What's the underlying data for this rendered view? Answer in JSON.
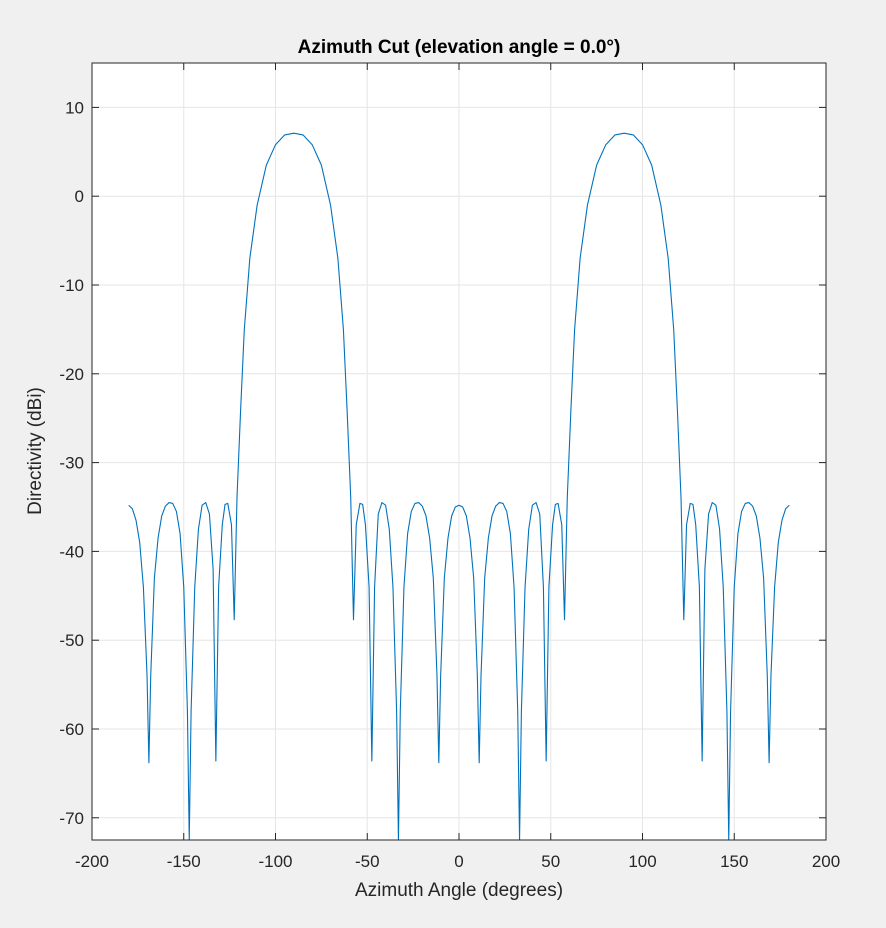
{
  "chart_data": {
    "type": "line",
    "title": "Azimuth Cut (elevation angle = 0.0°)",
    "xlabel": "Azimuth Angle (degrees)",
    "ylabel": "Directivity (dBi)",
    "xlim": [
      -200,
      200
    ],
    "ylim": [
      -72.5,
      15
    ],
    "xticks": [
      -200,
      -150,
      -100,
      -50,
      0,
      50,
      100,
      150,
      200
    ],
    "yticks": [
      -70,
      -60,
      -50,
      -40,
      -30,
      -20,
      -10,
      0,
      10
    ],
    "grid": true,
    "line_color": "#0072bd",
    "series": [
      {
        "points": [
          [
            -180,
            -34.8
          ],
          [
            -178,
            -35.2
          ],
          [
            -176,
            -36.5
          ],
          [
            -174,
            -39
          ],
          [
            -172,
            -44
          ],
          [
            -170,
            -54
          ],
          [
            -169,
            -63.8
          ],
          [
            -168,
            -54
          ],
          [
            -166,
            -43
          ],
          [
            -164,
            -38.5
          ],
          [
            -162,
            -36
          ],
          [
            -160,
            -34.9
          ],
          [
            -158,
            -34.5
          ],
          [
            -156,
            -34.6
          ],
          [
            -154,
            -35.5
          ],
          [
            -152,
            -38
          ],
          [
            -150,
            -44
          ],
          [
            -148,
            -58
          ],
          [
            -147,
            -72.5
          ],
          [
            -146,
            -58
          ],
          [
            -144,
            -44
          ],
          [
            -142,
            -37.5
          ],
          [
            -140,
            -34.8
          ],
          [
            -138,
            -34.5
          ],
          [
            -136,
            -35.8
          ],
          [
            -134,
            -42
          ],
          [
            -132.5,
            -63.6
          ],
          [
            -131,
            -44
          ],
          [
            -129,
            -37
          ],
          [
            -127.5,
            -34.7
          ],
          [
            -126,
            -34.6
          ],
          [
            -124,
            -37
          ],
          [
            -122.5,
            -47.7
          ],
          [
            -121,
            -34
          ],
          [
            -119,
            -24
          ],
          [
            -117,
            -15
          ],
          [
            -114,
            -7
          ],
          [
            -110,
            -1
          ],
          [
            -105,
            3.5
          ],
          [
            -100,
            5.8
          ],
          [
            -95,
            6.9
          ],
          [
            -90,
            7.1
          ],
          [
            -85,
            6.9
          ],
          [
            -80,
            5.8
          ],
          [
            -75,
            3.5
          ],
          [
            -70,
            -1
          ],
          [
            -66,
            -7
          ],
          [
            -63,
            -15
          ],
          [
            -61,
            -24
          ],
          [
            -59,
            -34
          ],
          [
            -57.5,
            -47.7
          ],
          [
            -56,
            -37
          ],
          [
            -54,
            -34.6
          ],
          [
            -52.5,
            -34.7
          ],
          [
            -51,
            -37
          ],
          [
            -49,
            -44
          ],
          [
            -47.5,
            -63.6
          ],
          [
            -46,
            -44
          ],
          [
            -44,
            -35.8
          ],
          [
            -42,
            -34.5
          ],
          [
            -40,
            -34.8
          ],
          [
            -38,
            -37.5
          ],
          [
            -36,
            -44
          ],
          [
            -34,
            -58
          ],
          [
            -33,
            -72.5
          ],
          [
            -32,
            -58
          ],
          [
            -30,
            -44
          ],
          [
            -28,
            -38
          ],
          [
            -26,
            -35.5
          ],
          [
            -24,
            -34.6
          ],
          [
            -22,
            -34.5
          ],
          [
            -20,
            -34.9
          ],
          [
            -18,
            -36
          ],
          [
            -16,
            -38.5
          ],
          [
            -14,
            -43
          ],
          [
            -12,
            -54
          ],
          [
            -11,
            -63.8
          ],
          [
            -10,
            -54
          ],
          [
            -8,
            -43
          ],
          [
            -6,
            -38.5
          ],
          [
            -4,
            -36
          ],
          [
            -2,
            -35
          ],
          [
            0,
            -34.8
          ],
          [
            2,
            -35
          ],
          [
            4,
            -36
          ],
          [
            6,
            -38.5
          ],
          [
            8,
            -43
          ],
          [
            10,
            -54
          ],
          [
            11,
            -63.8
          ],
          [
            12,
            -54
          ],
          [
            14,
            -43
          ],
          [
            16,
            -38.5
          ],
          [
            18,
            -36
          ],
          [
            20,
            -34.9
          ],
          [
            22,
            -34.5
          ],
          [
            24,
            -34.6
          ],
          [
            26,
            -35.5
          ],
          [
            28,
            -38
          ],
          [
            30,
            -44
          ],
          [
            32,
            -58
          ],
          [
            33,
            -72.5
          ],
          [
            34,
            -58
          ],
          [
            36,
            -44
          ],
          [
            38,
            -37.5
          ],
          [
            40,
            -34.8
          ],
          [
            42,
            -34.5
          ],
          [
            44,
            -35.8
          ],
          [
            46,
            -44
          ],
          [
            47.5,
            -63.6
          ],
          [
            49,
            -44
          ],
          [
            51,
            -37
          ],
          [
            52.5,
            -34.7
          ],
          [
            54,
            -34.6
          ],
          [
            56,
            -37
          ],
          [
            57.5,
            -47.7
          ],
          [
            59,
            -34
          ],
          [
            61,
            -24
          ],
          [
            63,
            -15
          ],
          [
            66,
            -7
          ],
          [
            70,
            -1
          ],
          [
            75,
            3.5
          ],
          [
            80,
            5.8
          ],
          [
            85,
            6.9
          ],
          [
            90,
            7.1
          ],
          [
            95,
            6.9
          ],
          [
            100,
            5.8
          ],
          [
            105,
            3.5
          ],
          [
            110,
            -1
          ],
          [
            114,
            -7
          ],
          [
            117,
            -15
          ],
          [
            119,
            -24
          ],
          [
            121,
            -34
          ],
          [
            122.5,
            -47.7
          ],
          [
            124,
            -37
          ],
          [
            126,
            -34.6
          ],
          [
            127.5,
            -34.7
          ],
          [
            129,
            -37
          ],
          [
            131,
            -44
          ],
          [
            132.5,
            -63.6
          ],
          [
            134,
            -42
          ],
          [
            136,
            -35.8
          ],
          [
            138,
            -34.5
          ],
          [
            140,
            -34.8
          ],
          [
            142,
            -37.5
          ],
          [
            144,
            -44
          ],
          [
            146,
            -58
          ],
          [
            147,
            -72.5
          ],
          [
            148,
            -58
          ],
          [
            150,
            -44
          ],
          [
            152,
            -38
          ],
          [
            154,
            -35.5
          ],
          [
            156,
            -34.6
          ],
          [
            158,
            -34.5
          ],
          [
            160,
            -34.9
          ],
          [
            162,
            -36
          ],
          [
            164,
            -38.5
          ],
          [
            166,
            -43
          ],
          [
            168,
            -54
          ],
          [
            169,
            -63.8
          ],
          [
            170,
            -54
          ],
          [
            172,
            -44
          ],
          [
            174,
            -39
          ],
          [
            176,
            -36.5
          ],
          [
            178,
            -35.2
          ],
          [
            180,
            -34.8
          ]
        ]
      }
    ]
  }
}
